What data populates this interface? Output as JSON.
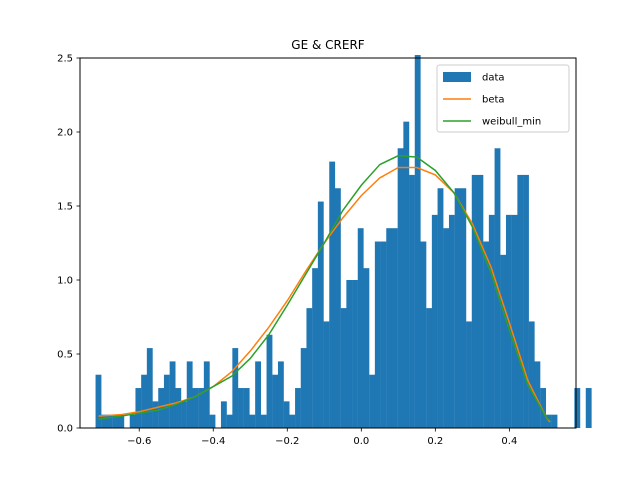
{
  "chart_data": {
    "type": "bar",
    "title": "GE & CRERF",
    "xlabel": "",
    "ylabel": "",
    "xlim": [
      -0.76,
      0.58
    ],
    "ylim": [
      0,
      2.5
    ],
    "x_ticks": [
      -0.6,
      -0.4,
      -0.2,
      0.0,
      0.2,
      0.4
    ],
    "x_tick_labels": [
      "−0.6",
      "−0.4",
      "−0.2",
      "0.0",
      "0.2",
      "0.4"
    ],
    "y_ticks": [
      0.0,
      0.5,
      1.0,
      1.5,
      2.0,
      2.5
    ],
    "y_tick_labels": [
      "0.0",
      "0.5",
      "1.0",
      "1.5",
      "2.0",
      "2.5"
    ],
    "grid": false,
    "legend": {
      "position": "top-right",
      "entries": [
        {
          "label": "data",
          "kind": "patch",
          "color": "#1f77b4"
        },
        {
          "label": "beta",
          "kind": "line",
          "color": "#ff7f0e"
        },
        {
          "label": "weibull_min",
          "kind": "line",
          "color": "#2ca02c"
        }
      ]
    },
    "histogram": {
      "name": "data",
      "color": "#1f77b4",
      "bin_start": -0.718,
      "bin_width": 0.0154,
      "heights": [
        0.36,
        0.09,
        0.09,
        0.09,
        0.09,
        0.0,
        0.09,
        0.27,
        0.36,
        0.54,
        0.18,
        0.27,
        0.36,
        0.45,
        0.27,
        0.18,
        0.45,
        0.27,
        0.27,
        0.45,
        0.09,
        0.0,
        0.18,
        0.09,
        0.54,
        0.27,
        0.27,
        0.09,
        0.45,
        0.09,
        0.63,
        0.36,
        0.45,
        0.18,
        0.09,
        0.27,
        0.54,
        0.81,
        1.08,
        1.53,
        0.72,
        1.8,
        1.62,
        0.81,
        1.0,
        1.0,
        1.35,
        1.08,
        0.36,
        1.26,
        1.26,
        1.35,
        1.35,
        1.89,
        2.07,
        1.71,
        2.52,
        1.26,
        0.81,
        1.44,
        1.62,
        1.35,
        1.44,
        1.62,
        1.62,
        0.72,
        1.71,
        1.71,
        1.26,
        1.44,
        1.89,
        1.17,
        1.44,
        1.44,
        1.71,
        1.71,
        0.72,
        0.45,
        0.27,
        0.09,
        0.09,
        0.0,
        0.0,
        0.0,
        0.27,
        0.0,
        0.27
      ]
    },
    "series": [
      {
        "name": "beta",
        "color": "#ff7f0e",
        "x": [
          -0.71,
          -0.65,
          -0.6,
          -0.55,
          -0.5,
          -0.45,
          -0.4,
          -0.35,
          -0.3,
          -0.25,
          -0.2,
          -0.15,
          -0.1,
          -0.05,
          0.0,
          0.05,
          0.1,
          0.15,
          0.2,
          0.25,
          0.3,
          0.35,
          0.4,
          0.45,
          0.5,
          0.51
        ],
        "y": [
          0.08,
          0.09,
          0.11,
          0.14,
          0.17,
          0.21,
          0.28,
          0.38,
          0.52,
          0.68,
          0.86,
          1.06,
          1.25,
          1.42,
          1.57,
          1.69,
          1.76,
          1.76,
          1.71,
          1.59,
          1.38,
          1.09,
          0.71,
          0.32,
          0.07,
          0.04
        ]
      },
      {
        "name": "weibull_min",
        "color": "#2ca02c",
        "x": [
          -0.71,
          -0.65,
          -0.6,
          -0.55,
          -0.5,
          -0.45,
          -0.4,
          -0.35,
          -0.3,
          -0.25,
          -0.2,
          -0.15,
          -0.1,
          -0.05,
          0.0,
          0.05,
          0.1,
          0.15,
          0.2,
          0.25,
          0.3,
          0.35,
          0.4,
          0.45,
          0.5,
          0.51
        ],
        "y": [
          0.06,
          0.08,
          0.1,
          0.12,
          0.16,
          0.21,
          0.28,
          0.35,
          0.47,
          0.63,
          0.83,
          1.04,
          1.25,
          1.47,
          1.64,
          1.78,
          1.84,
          1.83,
          1.74,
          1.59,
          1.36,
          1.05,
          0.66,
          0.29,
          0.07,
          0.05
        ]
      }
    ]
  }
}
